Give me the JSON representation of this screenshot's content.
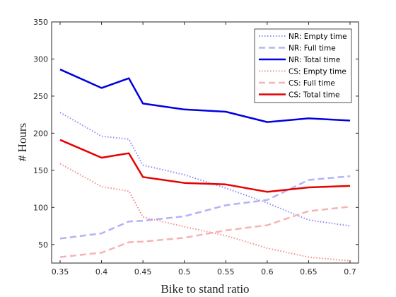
{
  "chart_data": {
    "type": "line",
    "xlabel": "Bike to stand ratio",
    "ylabel": "# Hours",
    "xlim": [
      0.35,
      0.7
    ],
    "ylim": [
      25,
      350
    ],
    "xticks": [
      0.35,
      0.4,
      0.45,
      0.5,
      0.55,
      0.6,
      0.65,
      0.7
    ],
    "xtick_labels": [
      "0.35",
      "0.4",
      "0.45",
      "0.5",
      "0.55",
      "0.6",
      "0.65",
      "0.7"
    ],
    "yticks": [
      50,
      100,
      150,
      200,
      250,
      300,
      350
    ],
    "ytick_labels": [
      "50",
      "100",
      "150",
      "200",
      "250",
      "300",
      "350"
    ],
    "grid": false,
    "legend_position": "top-right",
    "x": [
      0.35,
      0.4,
      0.433,
      0.45,
      0.5,
      0.55,
      0.6,
      0.65,
      0.7
    ],
    "series": [
      {
        "name": "NR: Empty time",
        "color": "#8c8cf2",
        "style": "dotted",
        "width": 2,
        "values": [
          228,
          196,
          192,
          157,
          144,
          126,
          106,
          83,
          75
        ]
      },
      {
        "name": "NR: Full time",
        "color": "#b3b3f5",
        "style": "dashed",
        "width": 2.5,
        "values": [
          58,
          65,
          81,
          82,
          88,
          103,
          110,
          137,
          142
        ]
      },
      {
        "name": "NR: Total time",
        "color": "#0000e0",
        "style": "solid",
        "width": 2.5,
        "values": [
          286,
          261,
          274,
          240,
          232,
          229,
          215,
          220,
          217
        ]
      },
      {
        "name": "CS: Empty time",
        "color": "#f48c8c",
        "style": "dotted",
        "width": 2,
        "values": [
          159,
          128,
          122,
          87,
          74,
          62,
          45,
          33,
          28
        ]
      },
      {
        "name": "CS: Full time",
        "color": "#f7b3b3",
        "style": "dashed",
        "width": 2.5,
        "values": [
          33,
          39,
          53,
          54,
          59,
          69,
          76,
          95,
          101
        ]
      },
      {
        "name": "CS: Total time",
        "color": "#e60000",
        "style": "solid",
        "width": 2.5,
        "values": [
          191,
          167,
          173,
          141,
          133,
          131,
          121,
          127,
          129
        ]
      }
    ]
  }
}
